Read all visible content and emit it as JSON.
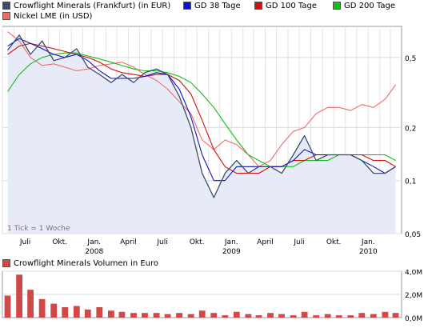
{
  "legend": {
    "items": [
      {
        "label": "Crowflight Minerals (Frankfurt) (in EUR)",
        "color": "#3c4c6c"
      },
      {
        "label": "GD 38 Tage",
        "color": "#1010c8"
      },
      {
        "label": "GD 100 Tage",
        "color": "#d01010"
      },
      {
        "label": "GD 200 Tage",
        "color": "#10c010"
      },
      {
        "label": "Nickel LME (in USD)",
        "color": "#f06a6a"
      }
    ]
  },
  "main_chart": {
    "note": "1 Tick = 1 Woche",
    "months": [
      "Juli",
      "Okt.",
      "Jan.",
      "April",
      "Juli",
      "Okt.",
      "Jan.",
      "April",
      "Juli",
      "Okt.",
      "Jan."
    ],
    "years": [
      "2008",
      "2009",
      "2010"
    ],
    "y_ticks": [
      "0,5",
      "0,2",
      "0,1",
      "0,05"
    ]
  },
  "volume_chart": {
    "title": "Crowflight Minerals Volumen in Euro",
    "y_ticks": [
      "4,0M",
      "2,0M",
      "0,0M"
    ]
  },
  "chart_data": {
    "type": "line",
    "title": "",
    "xlabel": "",
    "ylabel": "",
    "y_scale": "log",
    "ylim": [
      0.05,
      0.75
    ],
    "x": [
      "2007-05",
      "2007-06",
      "2007-07",
      "2007-08",
      "2007-09",
      "2007-10",
      "2007-11",
      "2007-12",
      "2008-01",
      "2008-02",
      "2008-03",
      "2008-04",
      "2008-05",
      "2008-06",
      "2008-07",
      "2008-08",
      "2008-09",
      "2008-10",
      "2008-11",
      "2008-12",
      "2009-01",
      "2009-02",
      "2009-03",
      "2009-04",
      "2009-05",
      "2009-06",
      "2009-07",
      "2009-08",
      "2009-09",
      "2009-10",
      "2009-11",
      "2009-12",
      "2010-01",
      "2010-02",
      "2010-03"
    ],
    "series": [
      {
        "name": "Crowflight Minerals (Frankfurt) (in EUR)",
        "color": "#3c4c6c",
        "values": [
          0.55,
          0.67,
          0.52,
          0.62,
          0.48,
          0.5,
          0.56,
          0.44,
          0.4,
          0.36,
          0.4,
          0.36,
          0.41,
          0.43,
          0.4,
          0.3,
          0.2,
          0.11,
          0.08,
          0.11,
          0.13,
          0.11,
          0.12,
          0.12,
          0.11,
          0.14,
          0.18,
          0.13,
          0.14,
          0.14,
          0.14,
          0.13,
          0.11,
          0.11,
          0.12
        ]
      },
      {
        "name": "GD 38 Tage",
        "color": "#1010c8",
        "values": [
          0.58,
          0.64,
          0.6,
          0.56,
          0.52,
          0.5,
          0.52,
          0.48,
          0.42,
          0.38,
          0.38,
          0.38,
          0.39,
          0.41,
          0.4,
          0.33,
          0.23,
          0.14,
          0.1,
          0.1,
          0.12,
          0.12,
          0.12,
          0.12,
          0.12,
          0.13,
          0.15,
          0.14,
          0.14,
          0.14,
          0.14,
          0.13,
          0.12,
          0.11,
          0.12
        ]
      },
      {
        "name": "GD 100 Tage",
        "color": "#d01010",
        "values": [
          0.52,
          0.58,
          0.6,
          0.58,
          0.56,
          0.54,
          0.52,
          0.5,
          0.47,
          0.43,
          0.41,
          0.4,
          0.39,
          0.4,
          0.4,
          0.37,
          0.31,
          0.22,
          0.15,
          0.12,
          0.11,
          0.11,
          0.11,
          0.12,
          0.12,
          0.13,
          0.13,
          0.14,
          0.14,
          0.14,
          0.14,
          0.14,
          0.13,
          0.13,
          0.12
        ]
      },
      {
        "name": "GD 200 Tage",
        "color": "#10c010",
        "values": [
          0.32,
          0.4,
          0.46,
          0.5,
          0.52,
          0.53,
          0.53,
          0.51,
          0.49,
          0.47,
          0.45,
          0.43,
          0.42,
          0.42,
          0.41,
          0.39,
          0.36,
          0.31,
          0.26,
          0.21,
          0.17,
          0.14,
          0.13,
          0.12,
          0.12,
          0.12,
          0.13,
          0.13,
          0.13,
          0.14,
          0.14,
          0.14,
          0.14,
          0.14,
          0.13
        ]
      },
      {
        "name": "Nickel LME (in USD)",
        "color": "#f06a6a",
        "values": [
          0.7,
          0.62,
          0.5,
          0.45,
          0.46,
          0.44,
          0.42,
          0.43,
          0.45,
          0.46,
          0.47,
          0.44,
          0.4,
          0.37,
          0.33,
          0.28,
          0.24,
          0.17,
          0.15,
          0.17,
          0.16,
          0.14,
          0.12,
          0.13,
          0.16,
          0.19,
          0.2,
          0.24,
          0.26,
          0.26,
          0.25,
          0.27,
          0.26,
          0.29,
          0.35
        ]
      }
    ],
    "volume": {
      "name": "Crowflight Minerals Volumen in Euro",
      "color": "#d04848",
      "ylim_millions": [
        0,
        4.0
      ],
      "x": [
        "2007-05",
        "2007-06",
        "2007-07",
        "2007-08",
        "2007-09",
        "2007-10",
        "2007-11",
        "2007-12",
        "2008-01",
        "2008-02",
        "2008-03",
        "2008-04",
        "2008-05",
        "2008-06",
        "2008-07",
        "2008-08",
        "2008-09",
        "2008-10",
        "2008-11",
        "2008-12",
        "2009-01",
        "2009-02",
        "2009-03",
        "2009-04",
        "2009-05",
        "2009-06",
        "2009-07",
        "2009-08",
        "2009-09",
        "2009-10",
        "2009-11",
        "2009-12",
        "2010-01",
        "2010-02",
        "2010-03"
      ],
      "values_millions": [
        1.9,
        3.7,
        2.4,
        1.6,
        1.2,
        0.9,
        1.0,
        0.7,
        0.9,
        0.6,
        0.5,
        0.4,
        0.4,
        0.4,
        0.3,
        0.4,
        0.3,
        0.6,
        0.4,
        0.2,
        0.5,
        0.3,
        0.2,
        0.4,
        0.3,
        0.2,
        0.5,
        0.2,
        0.3,
        0.2,
        0.2,
        0.4,
        0.3,
        0.5,
        0.4
      ]
    }
  }
}
